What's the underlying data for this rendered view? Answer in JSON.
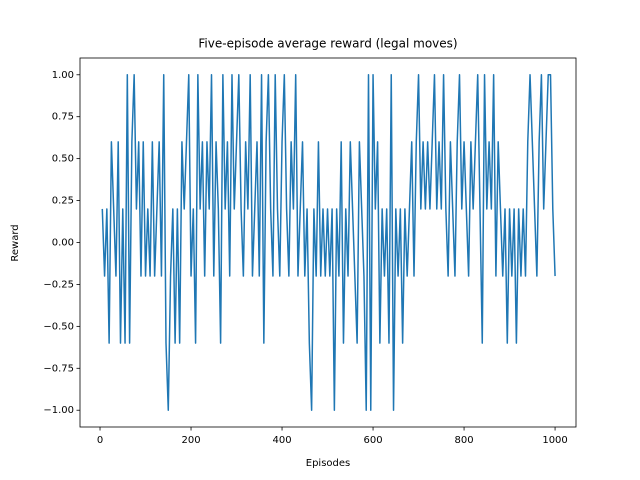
{
  "chart_data": {
    "type": "line",
    "title": "Five-episode average reward (legal moves)",
    "xlabel": "Episodes",
    "ylabel": "Reward",
    "x": [
      5,
      10,
      15,
      20,
      25,
      30,
      35,
      40,
      45,
      50,
      55,
      60,
      65,
      70,
      75,
      80,
      85,
      90,
      95,
      100,
      105,
      110,
      115,
      120,
      125,
      130,
      135,
      140,
      145,
      150,
      155,
      160,
      165,
      170,
      175,
      180,
      185,
      190,
      195,
      200,
      205,
      210,
      215,
      220,
      225,
      230,
      235,
      240,
      245,
      250,
      255,
      260,
      265,
      270,
      275,
      280,
      285,
      290,
      295,
      300,
      305,
      310,
      315,
      320,
      325,
      330,
      335,
      340,
      345,
      350,
      355,
      360,
      365,
      370,
      375,
      380,
      385,
      390,
      395,
      400,
      405,
      410,
      415,
      420,
      425,
      430,
      435,
      440,
      445,
      450,
      455,
      460,
      465,
      470,
      475,
      480,
      485,
      490,
      495,
      500,
      505,
      510,
      515,
      520,
      525,
      530,
      535,
      540,
      545,
      550,
      555,
      560,
      565,
      570,
      575,
      580,
      585,
      590,
      595,
      600,
      605,
      610,
      615,
      620,
      625,
      630,
      635,
      640,
      645,
      650,
      655,
      660,
      665,
      670,
      675,
      680,
      685,
      690,
      695,
      700,
      705,
      710,
      715,
      720,
      725,
      730,
      735,
      740,
      745,
      750,
      755,
      760,
      765,
      770,
      775,
      780,
      785,
      790,
      795,
      800,
      805,
      810,
      815,
      820,
      825,
      830,
      835,
      840,
      845,
      850,
      855,
      860,
      865,
      870,
      875,
      880,
      885,
      890,
      895,
      900,
      905,
      910,
      915,
      920,
      925,
      930,
      935,
      940,
      945,
      950,
      955,
      960,
      965,
      970,
      975,
      980,
      985,
      990,
      995,
      1000
    ],
    "series": [
      {
        "color": "#1f77b4",
        "values": [
          0.2,
          -0.2,
          0.2,
          -0.6,
          0.6,
          0.2,
          -0.2,
          0.6,
          -0.6,
          0.2,
          -0.6,
          1,
          -0.6,
          0.6,
          1,
          0.2,
          0.6,
          -0.2,
          0.6,
          -0.2,
          0.2,
          -0.2,
          0.6,
          -0.2,
          0.2,
          0.6,
          -0.2,
          1,
          -0.6,
          -1,
          -0.2,
          0.2,
          -0.6,
          0.2,
          -0.6,
          0.6,
          0.2,
          0.6,
          1,
          -0.2,
          0.2,
          -0.6,
          1,
          0.2,
          0.6,
          -0.2,
          0.6,
          0.2,
          1,
          -0.2,
          0.6,
          0.2,
          -0.6,
          1,
          0.2,
          0.6,
          -0.2,
          1,
          0.2,
          0.6,
          1,
          0.2,
          -0.2,
          0.6,
          0.2,
          1,
          -0.2,
          0.2,
          0.6,
          -0.2,
          1,
          -0.6,
          0.6,
          1,
          0.2,
          -0.2,
          1,
          0.2,
          -0.2,
          0.6,
          1,
          0.2,
          -0.2,
          0.6,
          0.2,
          1,
          -0.2,
          0.2,
          0.6,
          -0.2,
          0.2,
          -0.6,
          -1,
          0.2,
          -0.2,
          0.6,
          -0.2,
          0.2,
          -0.2,
          0.2,
          -0.2,
          0.2,
          -1,
          0.2,
          -0.2,
          0.6,
          -0.6,
          0.2,
          -0.2,
          0.6,
          0.2,
          -0.2,
          -0.6,
          0.6,
          0.2,
          -0.2,
          -1,
          1,
          -1,
          1,
          0.2,
          0.6,
          -0.6,
          0.2,
          -0.2,
          0.2,
          -0.6,
          1,
          -1,
          0.2,
          -0.2,
          0.2,
          -0.6,
          0.2,
          -0.2,
          0.2,
          0.6,
          -0.2,
          0.6,
          1,
          0.2,
          0.6,
          0.2,
          0.6,
          0.2,
          0.6,
          1,
          0.2,
          0.6,
          0.2,
          1,
          0.2,
          -0.2,
          0.6,
          0.2,
          -0.2,
          0.6,
          1,
          0.2,
          0.6,
          0.2,
          -0.2,
          0.6,
          0.2,
          0.6,
          1,
          0.2,
          -0.6,
          1,
          0.2,
          0.6,
          0.2,
          1,
          -0.2,
          0.6,
          0.2,
          -0.2,
          0.2,
          -0.6,
          0.2,
          -0.2,
          0.2,
          -0.6,
          0.2,
          -0.2,
          0.2,
          -0.2,
          0.6,
          1,
          0.6,
          0.2,
          -0.2,
          0.6,
          1,
          0.2,
          0.6,
          1,
          1,
          0.2,
          -0.2
        ]
      }
    ],
    "xlim": [
      -44,
      1046
    ],
    "ylim": [
      -1.1,
      1.1
    ],
    "xticks": [
      0,
      200,
      400,
      600,
      800,
      1000
    ],
    "yticks": [
      {
        "value": -1,
        "label": "−1.00"
      },
      {
        "value": -0.75,
        "label": "−0.75"
      },
      {
        "value": -0.5,
        "label": "−0.50"
      },
      {
        "value": -0.25,
        "label": "−0.25"
      },
      {
        "value": 0,
        "label": "0.00"
      },
      {
        "value": 0.25,
        "label": "0.25"
      },
      {
        "value": 0.5,
        "label": "0.50"
      },
      {
        "value": 0.75,
        "label": "0.75"
      },
      {
        "value": 1,
        "label": "1.00"
      }
    ]
  }
}
